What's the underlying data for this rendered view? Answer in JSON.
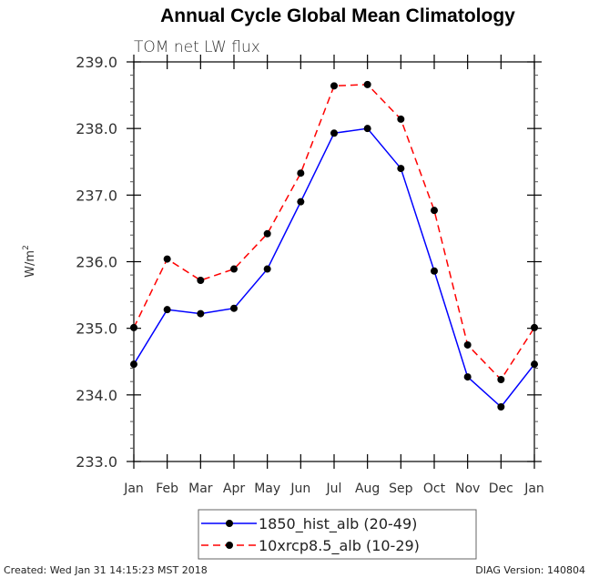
{
  "chart_data": {
    "type": "line",
    "title": "Annual Cycle Global Mean Climatology",
    "subtitle": "TOM net LW flux",
    "xlabel": "",
    "ylabel": "W/m",
    "ylabel_superscript": "2",
    "categories": [
      "Jan",
      "Feb",
      "Mar",
      "Apr",
      "May",
      "Jun",
      "Jul",
      "Aug",
      "Sep",
      "Oct",
      "Nov",
      "Dec",
      "Jan"
    ],
    "ylim": [
      233.0,
      239.0
    ],
    "yticks": [
      233.0,
      234.0,
      235.0,
      236.0,
      237.0,
      238.0,
      239.0
    ],
    "ytick_labels": [
      "233.0",
      "234.0",
      "235.0",
      "236.0",
      "237.0",
      "238.0",
      "239.0"
    ],
    "y_minor_per_major": 5,
    "grid": false,
    "legend_position": "bottom-center",
    "series": [
      {
        "name": "1850_hist_alb (20-49)",
        "color": "#0000ff",
        "dash": "solid",
        "marker": "filled-circle",
        "values": [
          234.46,
          235.28,
          235.22,
          235.3,
          235.89,
          236.9,
          237.93,
          238.0,
          237.4,
          235.86,
          234.27,
          233.82,
          234.46
        ]
      },
      {
        "name": "10xrcp8.5_alb (10-29)",
        "color": "#ff0000",
        "dash": "dashed",
        "marker": "filled-circle",
        "values": [
          235.01,
          236.04,
          235.72,
          235.89,
          236.42,
          237.33,
          238.64,
          238.66,
          238.14,
          236.77,
          234.75,
          234.23,
          235.01
        ]
      }
    ]
  },
  "footer": {
    "created": "Created: Wed Jan 31 14:15:23 MST 2018",
    "version": "DIAG Version: 140804"
  }
}
